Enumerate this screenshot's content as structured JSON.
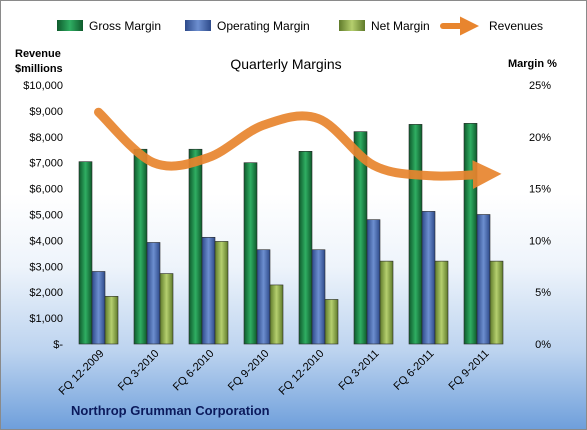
{
  "chart_data": {
    "type": "bar",
    "title": "Quarterly Margins",
    "left_axis_label_line1": "Revenue",
    "left_axis_label_line2": "$millions",
    "right_axis_label": "Margin %",
    "company": "Northrop Grumman Corporation",
    "categories": [
      "FQ 12-2009",
      "FQ 3-2010",
      "FQ 6-2010",
      "FQ 9-2010",
      "FQ 12-2010",
      "FQ 3-2011",
      "FQ 6-2011",
      "FQ 9-2011"
    ],
    "left_ticks": [
      "$-",
      "$1,000",
      "$2,000",
      "$3,000",
      "$4,000",
      "$5,000",
      "$6,000",
      "$7,000",
      "$8,000",
      "$9,000",
      "$10,000"
    ],
    "right_ticks": [
      "0%",
      "5%",
      "10%",
      "15%",
      "20%",
      "25%"
    ],
    "ylim_left": [
      0,
      10000
    ],
    "ylim_right": [
      0,
      25
    ],
    "series": [
      {
        "name": "Gross Margin",
        "axis": "right",
        "values": [
          17.6,
          18.8,
          18.8,
          17.5,
          18.6,
          20.5,
          21.2,
          21.3
        ],
        "color": "#1d8a4a"
      },
      {
        "name": "Operating Margin",
        "axis": "right",
        "values": [
          7.0,
          9.8,
          10.3,
          9.1,
          9.1,
          12.0,
          12.8,
          12.5
        ],
        "color": "#4f72b8"
      },
      {
        "name": "Net Margin",
        "axis": "right",
        "values": [
          4.6,
          6.8,
          9.9,
          5.7,
          4.3,
          8.0,
          8.0,
          8.0
        ],
        "color": "#8fad4a"
      },
      {
        "name": "Revenues",
        "axis": "left",
        "type": "line",
        "values": [
          8950,
          7000,
          7200,
          8450,
          8700,
          6900,
          6500,
          6550
        ],
        "color": "#e8852e"
      }
    ],
    "legend": "top",
    "grid": false
  }
}
